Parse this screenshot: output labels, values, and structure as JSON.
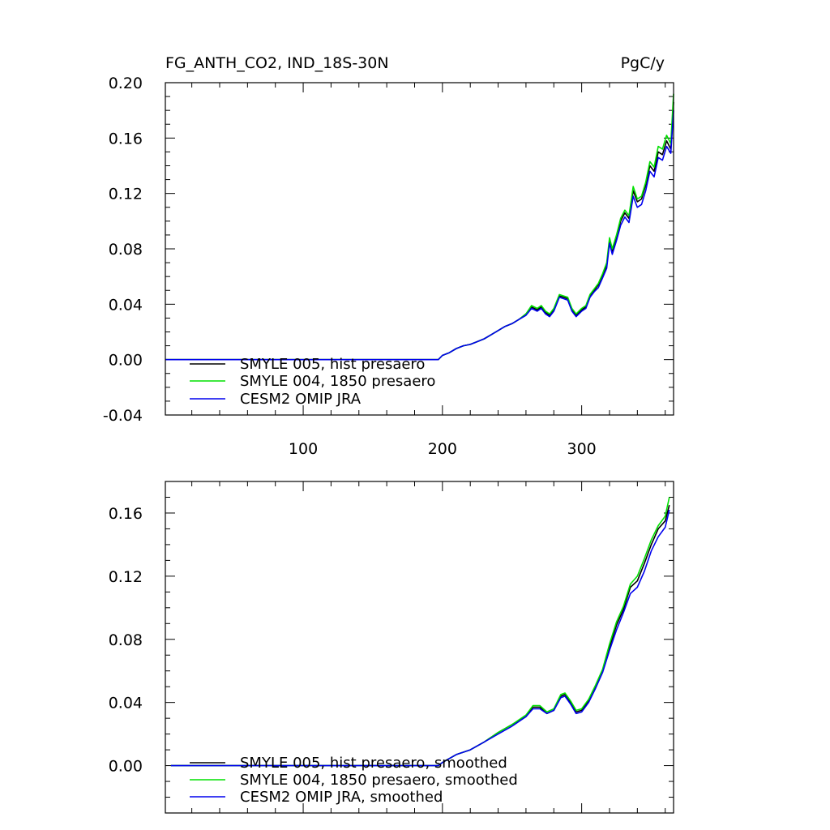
{
  "chart_data": [
    {
      "type": "line",
      "title": "FG_ANTH_CO2, IND_18S-30N",
      "units": "PgC/y",
      "xlabel": "",
      "ylabel": "",
      "xlim": [
        1,
        366
      ],
      "ylim": [
        -0.04,
        0.2
      ],
      "xticks": [
        100,
        200,
        300
      ],
      "xtick_labels": [
        "100",
        "200",
        "300"
      ],
      "yticks": [
        -0.04,
        0.0,
        0.04,
        0.08,
        0.12,
        0.16,
        0.2
      ],
      "ytick_labels": [
        "-0.04",
        "0.00",
        "0.04",
        "0.08",
        "0.12",
        "0.16",
        "0.20"
      ],
      "legend_position": "lower-left",
      "x": [
        1,
        50,
        100,
        150,
        197,
        200,
        205,
        210,
        215,
        220,
        225,
        230,
        235,
        240,
        245,
        250,
        255,
        260,
        264,
        268,
        271,
        274,
        277,
        280,
        284,
        287,
        290,
        293,
        296,
        300,
        303,
        306,
        309,
        312,
        315,
        318,
        320,
        322,
        325,
        328,
        331,
        334,
        337,
        340,
        343,
        346,
        349,
        352,
        355,
        358,
        361,
        364,
        366
      ],
      "series": [
        {
          "name": "SMYLE 005, hist presaero",
          "color": "#000000",
          "values": [
            0,
            0,
            0,
            0,
            0,
            0.003,
            0.005,
            0.008,
            0.01,
            0.011,
            0.013,
            0.015,
            0.018,
            0.021,
            0.024,
            0.026,
            0.029,
            0.033,
            0.038,
            0.036,
            0.038,
            0.034,
            0.032,
            0.036,
            0.046,
            0.045,
            0.044,
            0.036,
            0.032,
            0.036,
            0.038,
            0.046,
            0.05,
            0.054,
            0.061,
            0.068,
            0.086,
            0.078,
            0.088,
            0.1,
            0.106,
            0.102,
            0.122,
            0.114,
            0.116,
            0.126,
            0.14,
            0.136,
            0.15,
            0.148,
            0.158,
            0.152,
            0.186
          ]
        },
        {
          "name": "SMYLE 004, 1850 presaero",
          "color": "#00e000",
          "values": [
            0,
            0,
            0,
            0,
            0,
            0.003,
            0.005,
            0.008,
            0.01,
            0.011,
            0.013,
            0.015,
            0.018,
            0.021,
            0.024,
            0.026,
            0.029,
            0.033,
            0.039,
            0.037,
            0.039,
            0.035,
            0.033,
            0.037,
            0.047,
            0.046,
            0.045,
            0.037,
            0.033,
            0.037,
            0.039,
            0.047,
            0.051,
            0.055,
            0.062,
            0.07,
            0.088,
            0.08,
            0.09,
            0.102,
            0.108,
            0.104,
            0.125,
            0.116,
            0.118,
            0.128,
            0.143,
            0.139,
            0.154,
            0.152,
            0.162,
            0.156,
            0.192
          ]
        },
        {
          "name": "CESM2 OMIP JRA",
          "color": "#0000ee",
          "values": [
            0,
            0,
            0,
            0,
            0,
            0.003,
            0.005,
            0.008,
            0.01,
            0.011,
            0.013,
            0.015,
            0.018,
            0.021,
            0.024,
            0.026,
            0.029,
            0.032,
            0.037,
            0.035,
            0.037,
            0.033,
            0.031,
            0.035,
            0.045,
            0.044,
            0.043,
            0.035,
            0.031,
            0.035,
            0.037,
            0.045,
            0.049,
            0.052,
            0.059,
            0.066,
            0.084,
            0.076,
            0.086,
            0.097,
            0.103,
            0.099,
            0.118,
            0.11,
            0.112,
            0.122,
            0.136,
            0.132,
            0.146,
            0.144,
            0.154,
            0.149,
            0.18
          ]
        }
      ]
    },
    {
      "type": "line",
      "title": "",
      "xlabel": "",
      "ylabel": "",
      "xlim": [
        1,
        366
      ],
      "ylim": [
        -0.03,
        0.18
      ],
      "xticks": [
        100,
        200,
        300
      ],
      "xtick_labels": [
        "",
        "",
        ""
      ],
      "yticks": [
        0.0,
        0.04,
        0.08,
        0.12,
        0.16
      ],
      "ytick_labels": [
        "0.00",
        "0.04",
        "0.08",
        "0.12",
        "0.16"
      ],
      "legend_position": "lower-left",
      "x": [
        5,
        50,
        100,
        150,
        197,
        200,
        210,
        220,
        230,
        240,
        250,
        260,
        265,
        270,
        275,
        280,
        285,
        288,
        292,
        296,
        300,
        305,
        310,
        315,
        320,
        325,
        330,
        335,
        340,
        345,
        350,
        355,
        360,
        363
      ],
      "series": [
        {
          "name": "SMYLE 005, hist presaero, smoothed",
          "color": "#000000",
          "values": [
            0,
            0,
            0,
            0,
            0,
            0.002,
            0.007,
            0.01,
            0.015,
            0.021,
            0.026,
            0.031,
            0.037,
            0.037,
            0.033,
            0.035,
            0.044,
            0.045,
            0.04,
            0.034,
            0.035,
            0.041,
            0.05,
            0.06,
            0.075,
            0.089,
            0.099,
            0.113,
            0.117,
            0.128,
            0.14,
            0.15,
            0.155,
            0.165
          ]
        },
        {
          "name": "SMYLE 004, 1850 presaero, smoothed",
          "color": "#00e000",
          "values": [
            0,
            0,
            0,
            0,
            0,
            0.002,
            0.007,
            0.01,
            0.015,
            0.021,
            0.026,
            0.032,
            0.038,
            0.038,
            0.034,
            0.036,
            0.045,
            0.046,
            0.041,
            0.035,
            0.036,
            0.042,
            0.051,
            0.061,
            0.077,
            0.091,
            0.101,
            0.115,
            0.12,
            0.131,
            0.143,
            0.152,
            0.158,
            0.17
          ]
        },
        {
          "name": "CESM2 OMIP JRA, smoothed",
          "color": "#0000ee",
          "values": [
            0,
            0,
            0,
            0,
            0,
            0.002,
            0.007,
            0.01,
            0.015,
            0.02,
            0.025,
            0.031,
            0.036,
            0.036,
            0.033,
            0.035,
            0.043,
            0.044,
            0.039,
            0.033,
            0.034,
            0.04,
            0.049,
            0.059,
            0.073,
            0.086,
            0.097,
            0.109,
            0.113,
            0.123,
            0.136,
            0.145,
            0.151,
            0.162
          ]
        }
      ]
    }
  ]
}
